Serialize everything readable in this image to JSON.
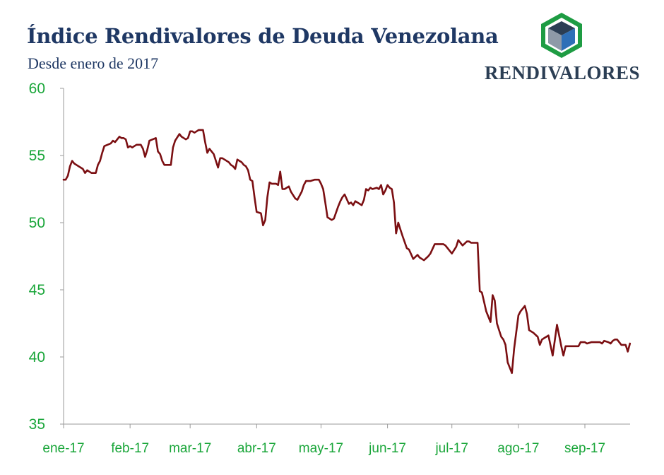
{
  "header": {
    "title": "Índice Rendivalores de Deuda Venezolana",
    "subtitle": "Desde enero de 2017"
  },
  "logo": {
    "text": "RENDIVALORES",
    "icon": "cube-hexagon-icon",
    "colors": {
      "outer": "#1e9c43",
      "top": "#2b3e54",
      "left": "#8e9aa8",
      "right": "#2e6fb7"
    }
  },
  "colors": {
    "line": "#7b0f12",
    "ticks": "#1aa63a",
    "axis": "#9a9a9a"
  },
  "chart_data": {
    "type": "line",
    "title": "Índice Rendivalores de Deuda Venezolana",
    "subtitle": "Desde enero de 2017",
    "xlabel": "",
    "ylabel": "",
    "ylim": [
      35,
      60
    ],
    "yticks": [
      35,
      40,
      45,
      50,
      55,
      60
    ],
    "xticks": [
      "ene-17",
      "feb-17",
      "mar-17",
      "abr-17",
      "may-17",
      "jun-17",
      "jul-17",
      "ago-17",
      "sep-17"
    ],
    "xtick_dates": [
      "2017-01-01",
      "2017-02-01",
      "2017-03-01",
      "2017-04-01",
      "2017-05-01",
      "2017-06-01",
      "2017-07-01",
      "2017-08-01",
      "2017-09-01"
    ],
    "xlim": [
      "2017-01-01",
      "2017-09-22"
    ],
    "grid": false,
    "legend": "none",
    "series": [
      {
        "x": [
          "2017-01-01",
          "2017-01-02",
          "2017-01-03",
          "2017-01-04",
          "2017-01-05",
          "2017-01-06",
          "2017-01-07",
          "2017-01-09",
          "2017-01-10",
          "2017-01-11",
          "2017-01-12",
          "2017-01-13",
          "2017-01-14",
          "2017-01-16",
          "2017-01-17",
          "2017-01-18",
          "2017-01-19",
          "2017-01-20",
          "2017-01-23",
          "2017-01-24",
          "2017-01-25",
          "2017-01-27",
          "2017-01-28",
          "2017-01-29",
          "2017-01-30",
          "2017-01-31",
          "2017-02-01",
          "2017-02-02",
          "2017-02-03",
          "2017-02-04",
          "2017-02-06",
          "2017-02-07",
          "2017-02-08",
          "2017-02-09",
          "2017-02-10",
          "2017-02-13",
          "2017-02-14",
          "2017-02-15",
          "2017-02-16",
          "2017-02-17",
          "2017-02-18",
          "2017-02-20",
          "2017-02-21",
          "2017-02-22",
          "2017-02-24",
          "2017-02-25",
          "2017-02-26",
          "2017-02-27",
          "2017-02-28",
          "2017-03-01",
          "2017-03-02",
          "2017-03-03",
          "2017-03-04",
          "2017-03-05",
          "2017-03-06",
          "2017-03-07",
          "2017-03-08",
          "2017-03-09",
          "2017-03-10",
          "2017-03-12",
          "2017-03-14",
          "2017-03-15",
          "2017-03-16",
          "2017-03-17",
          "2017-03-19",
          "2017-03-20",
          "2017-03-21",
          "2017-03-22",
          "2017-03-23",
          "2017-03-24",
          "2017-03-25",
          "2017-03-26",
          "2017-03-27",
          "2017-03-28",
          "2017-03-29",
          "2017-03-30",
          "2017-03-31",
          "2017-04-01",
          "2017-04-03",
          "2017-04-04",
          "2017-04-05",
          "2017-04-06",
          "2017-04-07",
          "2017-04-08",
          "2017-04-10",
          "2017-04-11",
          "2017-04-12",
          "2017-04-13",
          "2017-04-14",
          "2017-04-15",
          "2017-04-16",
          "2017-04-17",
          "2017-04-19",
          "2017-04-20",
          "2017-04-22",
          "2017-04-23",
          "2017-04-24",
          "2017-04-25",
          "2017-04-26",
          "2017-04-28",
          "2017-04-30",
          "2017-05-01",
          "2017-05-02",
          "2017-05-03",
          "2017-05-04",
          "2017-05-06",
          "2017-05-07",
          "2017-05-09",
          "2017-05-10",
          "2017-05-11",
          "2017-05-12",
          "2017-05-14",
          "2017-05-15",
          "2017-05-16",
          "2017-05-17",
          "2017-05-18",
          "2017-05-19",
          "2017-05-20",
          "2017-05-21",
          "2017-05-22",
          "2017-05-23",
          "2017-05-24",
          "2017-05-25",
          "2017-05-27",
          "2017-05-28",
          "2017-05-29",
          "2017-05-30",
          "2017-05-31",
          "2017-06-01",
          "2017-06-02",
          "2017-06-03",
          "2017-06-04",
          "2017-06-05",
          "2017-06-06",
          "2017-06-07",
          "2017-06-08",
          "2017-06-10",
          "2017-06-11",
          "2017-06-13",
          "2017-06-15",
          "2017-06-16",
          "2017-06-17",
          "2017-06-18",
          "2017-06-20",
          "2017-06-21",
          "2017-06-23",
          "2017-06-25",
          "2017-06-27",
          "2017-06-28",
          "2017-06-29",
          "2017-07-01",
          "2017-07-03",
          "2017-07-04",
          "2017-07-06",
          "2017-07-08",
          "2017-07-09",
          "2017-07-10",
          "2017-07-11",
          "2017-07-12",
          "2017-07-13",
          "2017-07-14",
          "2017-07-15",
          "2017-07-16",
          "2017-07-17",
          "2017-07-19",
          "2017-07-20",
          "2017-07-21",
          "2017-07-22",
          "2017-07-23",
          "2017-07-24",
          "2017-07-25",
          "2017-07-26",
          "2017-07-27",
          "2017-07-29",
          "2017-07-30",
          "2017-08-01",
          "2017-08-02",
          "2017-08-04",
          "2017-08-05",
          "2017-08-06",
          "2017-08-08",
          "2017-08-10",
          "2017-08-11",
          "2017-08-12",
          "2017-08-13",
          "2017-08-15",
          "2017-08-17",
          "2017-08-19",
          "2017-08-21",
          "2017-08-22",
          "2017-08-23",
          "2017-08-25",
          "2017-08-27",
          "2017-08-29",
          "2017-08-30",
          "2017-08-31",
          "2017-09-01",
          "2017-09-02",
          "2017-09-04",
          "2017-09-06",
          "2017-09-08",
          "2017-09-09",
          "2017-09-10",
          "2017-09-12",
          "2017-09-13",
          "2017-09-14",
          "2017-09-15",
          "2017-09-16",
          "2017-09-17",
          "2017-09-18",
          "2017-09-20",
          "2017-09-21",
          "2017-09-22"
        ],
        "values": [
          53.2,
          53.2,
          53.5,
          54.2,
          54.6,
          54.4,
          54.3,
          54.1,
          54.0,
          53.7,
          53.9,
          53.8,
          53.7,
          53.7,
          54.3,
          54.6,
          55.2,
          55.7,
          55.9,
          56.1,
          56.0,
          56.4,
          56.3,
          56.3,
          56.2,
          55.6,
          55.7,
          55.6,
          55.7,
          55.8,
          55.8,
          55.5,
          54.9,
          55.4,
          56.1,
          56.3,
          55.3,
          55.1,
          54.6,
          54.3,
          54.3,
          54.3,
          55.6,
          56.1,
          56.6,
          56.4,
          56.3,
          56.2,
          56.3,
          56.8,
          56.8,
          56.7,
          56.8,
          56.9,
          56.9,
          56.9,
          56.0,
          55.2,
          55.5,
          55.1,
          54.1,
          54.8,
          54.8,
          54.7,
          54.5,
          54.3,
          54.2,
          54.0,
          54.7,
          54.6,
          54.5,
          54.3,
          54.2,
          53.9,
          53.2,
          53.1,
          51.9,
          50.8,
          50.7,
          49.8,
          50.2,
          51.9,
          53.0,
          52.9,
          52.9,
          52.8,
          53.8,
          52.5,
          52.5,
          52.6,
          52.7,
          52.3,
          51.8,
          51.7,
          52.3,
          52.8,
          53.1,
          53.1,
          53.1,
          53.2,
          53.2,
          52.9,
          52.5,
          51.5,
          50.4,
          50.2,
          50.3,
          51.2,
          51.6,
          51.9,
          52.1,
          51.4,
          51.5,
          51.3,
          51.6,
          51.5,
          51.4,
          51.3,
          51.7,
          52.5,
          52.4,
          52.6,
          52.5,
          52.6,
          52.5,
          52.8,
          52.1,
          52.4,
          52.8,
          52.6,
          52.5,
          51.5,
          49.2,
          50.0,
          49.5,
          49.0,
          48.1,
          48.0,
          47.3,
          47.6,
          47.4,
          47.3,
          47.2,
          47.5,
          47.7,
          48.4,
          48.4,
          48.4,
          48.3,
          48.1,
          47.7,
          48.2,
          48.7,
          48.3,
          48.6,
          48.6,
          48.5,
          48.5,
          48.5,
          48.5,
          44.9,
          44.8,
          44.1,
          43.4,
          42.6,
          44.6,
          44.2,
          42.5,
          42.0,
          41.5,
          41.3,
          40.9,
          39.6,
          38.8,
          40.6,
          43.1,
          43.4,
          43.8,
          43.2,
          42.0,
          41.8,
          41.5,
          40.9,
          41.3,
          41.4,
          41.6,
          40.1,
          42.4,
          40.8,
          40.1,
          40.8,
          40.8,
          40.8,
          40.8,
          41.1,
          41.1,
          41.1,
          41.0,
          41.1,
          41.1,
          41.1,
          41.0,
          41.2,
          41.1,
          41.0,
          41.2,
          41.3,
          41.3,
          41.1,
          40.9,
          40.9,
          40.4,
          41.0
        ]
      }
    ]
  }
}
